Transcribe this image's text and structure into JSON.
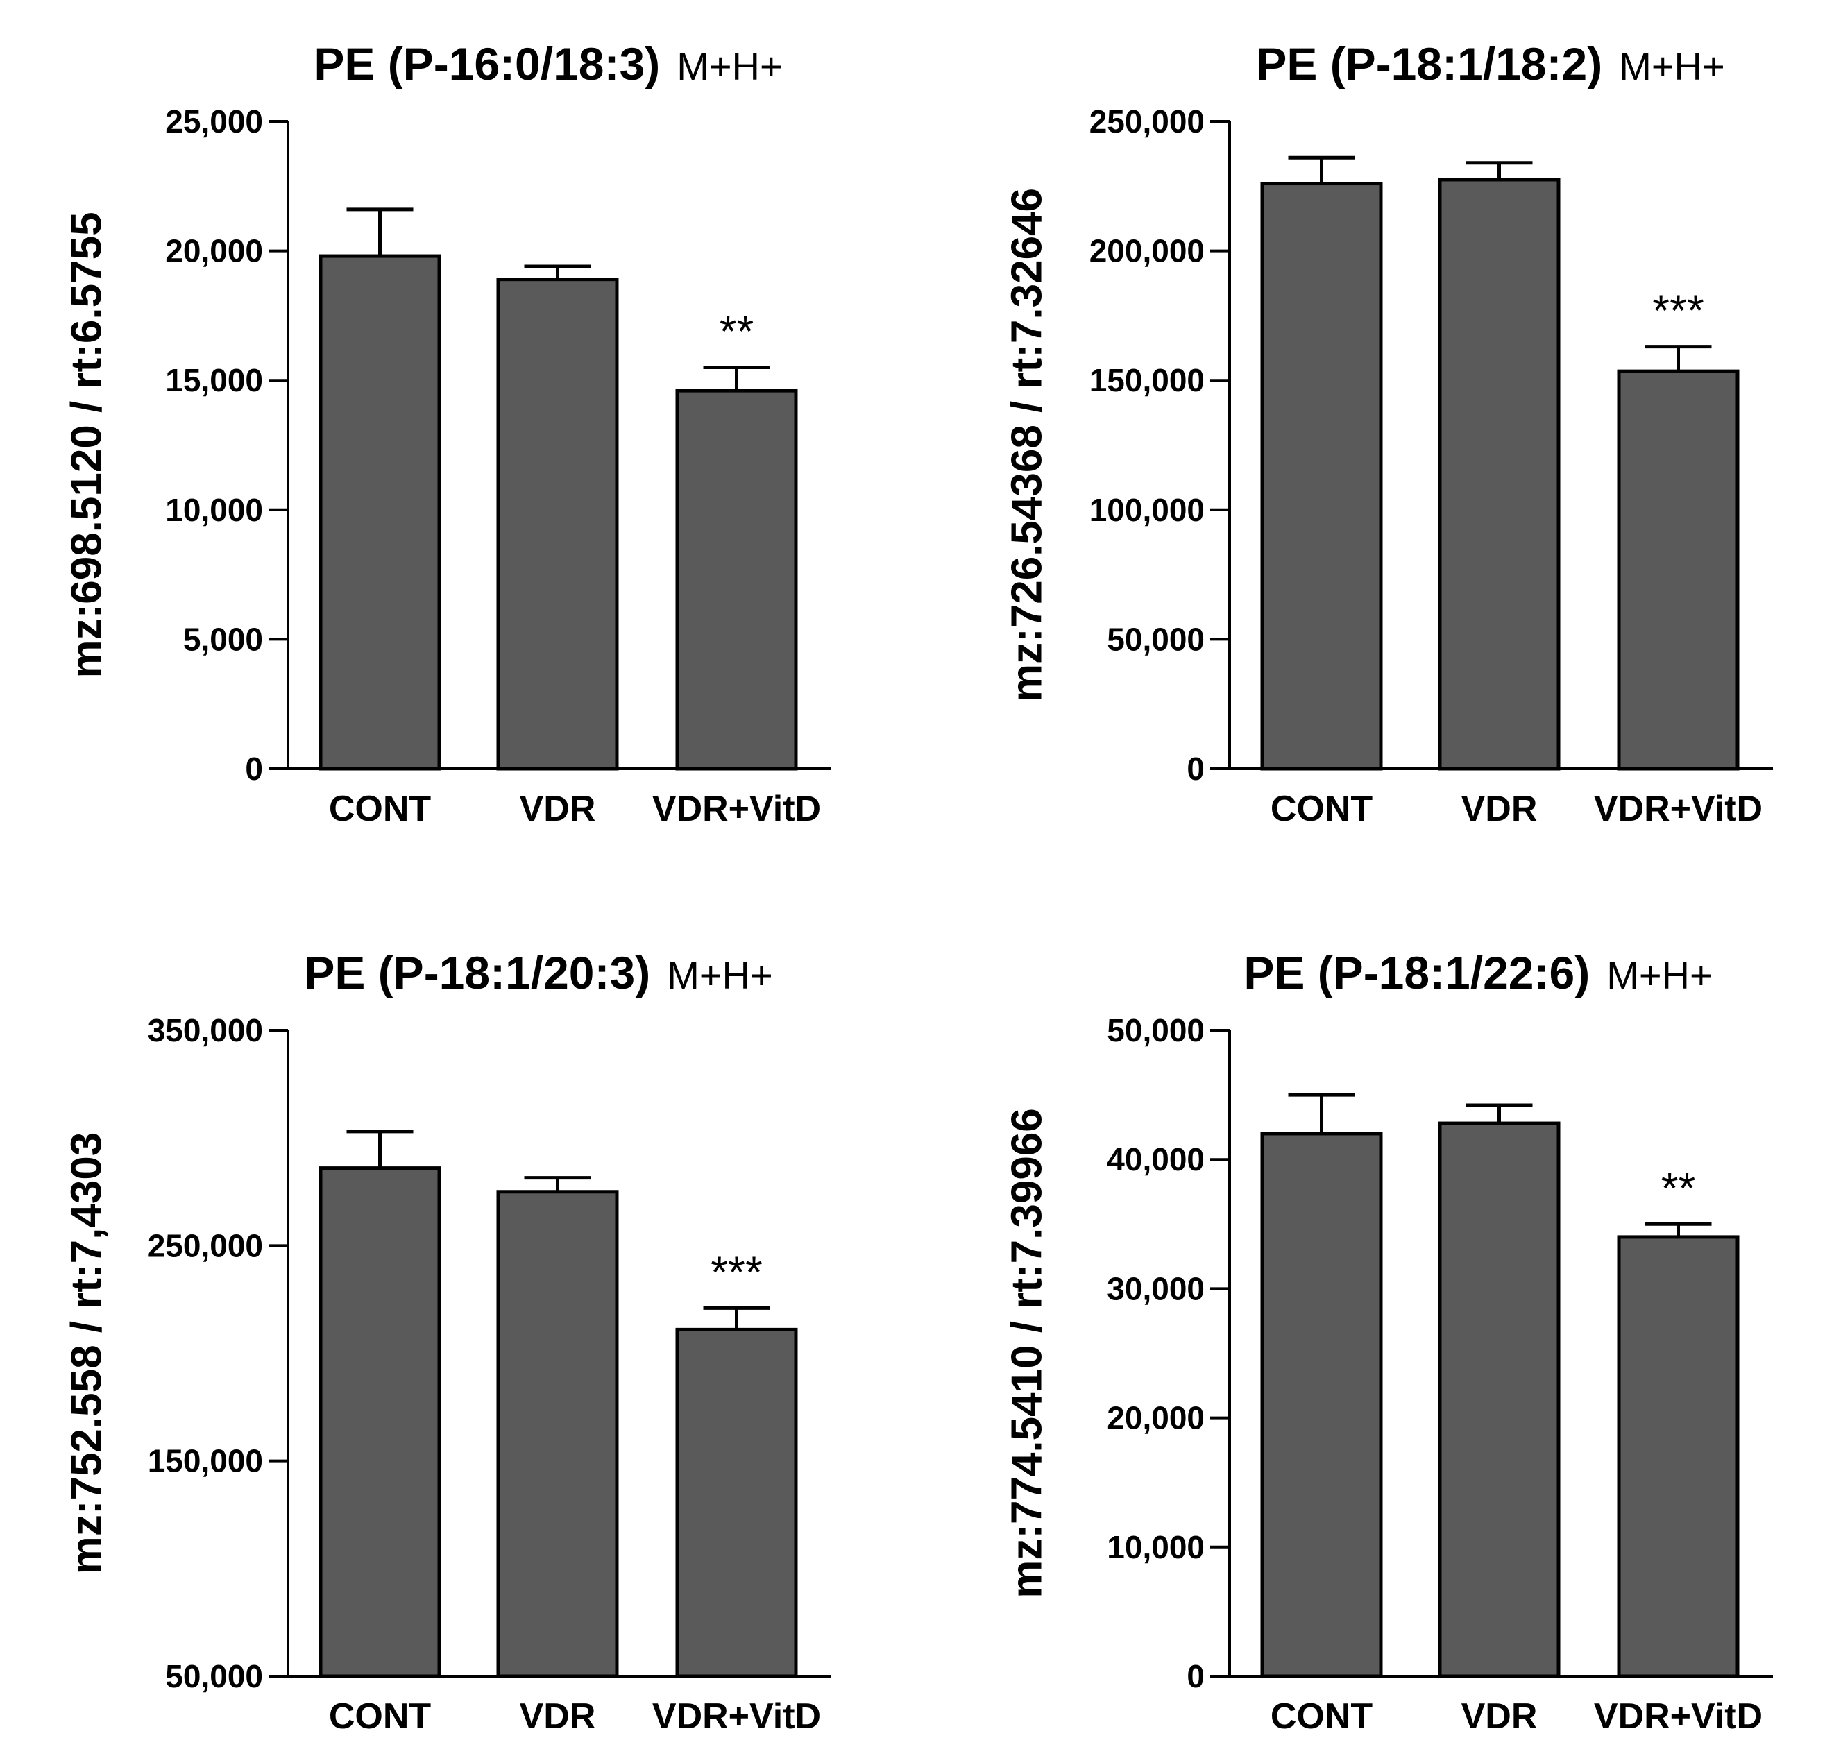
{
  "colors": {
    "bar_fill": "#5a5a5a",
    "stroke": "#000000",
    "background": "#ffffff"
  },
  "chart_data": [
    {
      "type": "bar",
      "title": "PE (P-16:0/18:3)",
      "title_suffix": "M+H+",
      "ylabel": "mz:698.5120 / rt:6.5755",
      "xlabel": "",
      "categories": [
        "CONT",
        "VDR",
        "VDR+VitD"
      ],
      "values": [
        19800,
        18900,
        14600
      ],
      "errors": [
        1800,
        500,
        900
      ],
      "significance": [
        "",
        "",
        "**"
      ],
      "ylim": [
        0,
        25000
      ],
      "yticks": [
        0,
        5000,
        10000,
        15000,
        20000,
        25000
      ],
      "ytick_labels": [
        "0",
        "5,000",
        "10,000",
        "15,000",
        "20,000",
        "25,000"
      ]
    },
    {
      "type": "bar",
      "title": "PE (P-18:1/18:2)",
      "title_suffix": "M+H+",
      "ylabel": "mz:726.54368 / rt:7.32646",
      "xlabel": "",
      "categories": [
        "CONT",
        "VDR",
        "VDR+VitD"
      ],
      "values": [
        226000,
        227500,
        153500
      ],
      "errors": [
        10000,
        6500,
        9500
      ],
      "significance": [
        "",
        "",
        "***"
      ],
      "ylim": [
        0,
        250000
      ],
      "yticks": [
        0,
        50000,
        100000,
        150000,
        200000,
        250000
      ],
      "ytick_labels": [
        "0",
        "50,000",
        "100,000",
        "150,000",
        "200,000",
        "250,000"
      ]
    },
    {
      "type": "bar",
      "title": "PE (P-18:1/20:3)",
      "title_suffix": "M+H+",
      "ylabel": "mz:752.558 / rt:7,4303",
      "xlabel": "",
      "categories": [
        "CONT",
        "VDR",
        "VDR+VitD"
      ],
      "values": [
        286000,
        275000,
        211000
      ],
      "errors": [
        17000,
        6500,
        10000
      ],
      "significance": [
        "",
        "",
        "***"
      ],
      "ylim": [
        50000,
        350000
      ],
      "yticks": [
        50000,
        150000,
        250000,
        350000
      ],
      "ytick_labels": [
        "50,000",
        "150,000",
        "250,000",
        "350,000"
      ]
    },
    {
      "type": "bar",
      "title": "PE (P-18:1/22:6)",
      "title_suffix": "M+H+",
      "ylabel": "mz:774.5410 / rt:7.39966",
      "xlabel": "",
      "categories": [
        "CONT",
        "VDR",
        "VDR+VitD"
      ],
      "values": [
        42000,
        42800,
        34000
      ],
      "errors": [
        3000,
        1400,
        1000
      ],
      "significance": [
        "",
        "",
        "**"
      ],
      "ylim": [
        0,
        50000
      ],
      "yticks": [
        0,
        10000,
        20000,
        30000,
        40000,
        50000
      ],
      "ytick_labels": [
        "0",
        "10,000",
        "20,000",
        "30,000",
        "40,000",
        "50,000"
      ]
    }
  ]
}
